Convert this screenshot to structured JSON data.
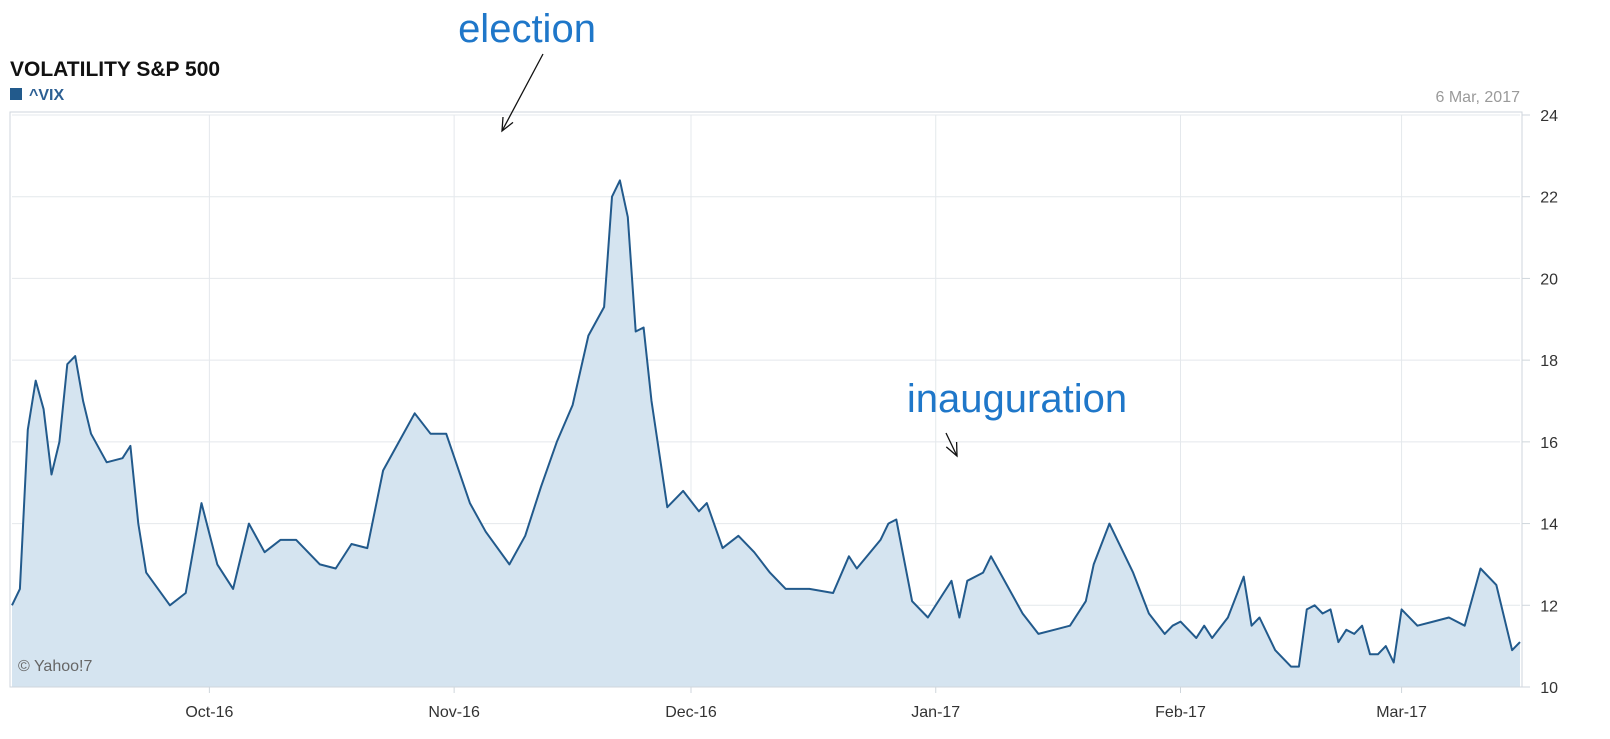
{
  "chart_data": {
    "type": "area",
    "title": "VOLATILITY S&P 500",
    "legend": [
      {
        "name": "^VIX",
        "color": "#225a8c"
      }
    ],
    "date_label": "6 Mar, 2017",
    "credit": "© Yahoo!7",
    "x_ticks": [
      "Oct-16",
      "Nov-16",
      "Dec-16",
      "Jan-17",
      "Feb-17",
      "Mar-17"
    ],
    "y_ticks": [
      "10",
      "12",
      "14",
      "16",
      "18",
      "20",
      "22",
      "24"
    ],
    "ylim": [
      10,
      24
    ],
    "grid": true,
    "annotations": [
      "election",
      "inauguration"
    ],
    "colors": {
      "line": "#225a8c",
      "fill": "#d5e4f0",
      "grid": "#e4e8ec",
      "annotation": "#1f77c9"
    },
    "series": [
      {
        "name": "^VIX",
        "points": [
          [
            "2016-09-06",
            12.0
          ],
          [
            "2016-09-07",
            12.4
          ],
          [
            "2016-09-08",
            16.3
          ],
          [
            "2016-09-09",
            17.5
          ],
          [
            "2016-09-10",
            16.8
          ],
          [
            "2016-09-11",
            15.2
          ],
          [
            "2016-09-12",
            16.0
          ],
          [
            "2016-09-13",
            17.9
          ],
          [
            "2016-09-14",
            18.1
          ],
          [
            "2016-09-15",
            17.0
          ],
          [
            "2016-09-16",
            16.2
          ],
          [
            "2016-09-18",
            15.5
          ],
          [
            "2016-09-20",
            15.6
          ],
          [
            "2016-09-21",
            15.9
          ],
          [
            "2016-09-22",
            14.0
          ],
          [
            "2016-09-23",
            12.8
          ],
          [
            "2016-09-26",
            12.0
          ],
          [
            "2016-09-28",
            12.3
          ],
          [
            "2016-09-30",
            14.5
          ],
          [
            "2016-10-02",
            13.0
          ],
          [
            "2016-10-04",
            12.4
          ],
          [
            "2016-10-06",
            14.0
          ],
          [
            "2016-10-08",
            13.3
          ],
          [
            "2016-10-10",
            13.6
          ],
          [
            "2016-10-12",
            13.6
          ],
          [
            "2016-10-15",
            13.0
          ],
          [
            "2016-10-17",
            12.9
          ],
          [
            "2016-10-19",
            13.5
          ],
          [
            "2016-10-21",
            13.4
          ],
          [
            "2016-10-23",
            15.3
          ],
          [
            "2016-10-25",
            16.0
          ],
          [
            "2016-10-27",
            16.7
          ],
          [
            "2016-10-29",
            16.2
          ],
          [
            "2016-10-31",
            16.2
          ],
          [
            "2016-11-03",
            14.5
          ],
          [
            "2016-11-05",
            13.8
          ],
          [
            "2016-11-08",
            13.0
          ],
          [
            "2016-11-10",
            13.7
          ],
          [
            "2016-11-12",
            14.9
          ],
          [
            "2016-11-14",
            16.0
          ],
          [
            "2016-11-16",
            16.9
          ],
          [
            "2016-11-18",
            18.6
          ],
          [
            "2016-11-20",
            19.3
          ],
          [
            "2016-11-21",
            22.0
          ],
          [
            "2016-11-22",
            22.4
          ],
          [
            "2016-11-23",
            21.5
          ],
          [
            "2016-11-24",
            18.7
          ],
          [
            "2016-11-25",
            18.8
          ],
          [
            "2016-11-26",
            17.0
          ],
          [
            "2016-11-28",
            14.4
          ],
          [
            "2016-11-30",
            14.8
          ],
          [
            "2016-12-02",
            14.3
          ],
          [
            "2016-12-03",
            14.5
          ],
          [
            "2016-12-05",
            13.4
          ],
          [
            "2016-12-07",
            13.7
          ],
          [
            "2016-12-09",
            13.3
          ],
          [
            "2016-12-11",
            12.8
          ],
          [
            "2016-12-13",
            12.4
          ],
          [
            "2016-12-16",
            12.4
          ],
          [
            "2016-12-19",
            12.3
          ],
          [
            "2016-12-21",
            13.2
          ],
          [
            "2016-12-22",
            12.9
          ],
          [
            "2016-12-25",
            13.6
          ],
          [
            "2016-12-26",
            14.0
          ],
          [
            "2016-12-27",
            14.1
          ],
          [
            "2016-12-29",
            12.1
          ],
          [
            "2016-12-31",
            11.7
          ],
          [
            "2017-01-02",
            12.3
          ],
          [
            "2017-01-03",
            12.6
          ],
          [
            "2017-01-04",
            11.7
          ],
          [
            "2017-01-05",
            12.6
          ],
          [
            "2017-01-07",
            12.8
          ],
          [
            "2017-01-08",
            13.2
          ],
          [
            "2017-01-10",
            12.5
          ],
          [
            "2017-01-12",
            11.8
          ],
          [
            "2017-01-14",
            11.3
          ],
          [
            "2017-01-16",
            11.4
          ],
          [
            "2017-01-18",
            11.5
          ],
          [
            "2017-01-20",
            12.1
          ],
          [
            "2017-01-21",
            13.0
          ],
          [
            "2017-01-23",
            14.0
          ],
          [
            "2017-01-26",
            12.8
          ],
          [
            "2017-01-28",
            11.8
          ],
          [
            "2017-01-30",
            11.3
          ],
          [
            "2017-01-31",
            11.5
          ],
          [
            "2017-02-01",
            11.6
          ],
          [
            "2017-02-03",
            11.2
          ],
          [
            "2017-02-04",
            11.5
          ],
          [
            "2017-02-05",
            11.2
          ],
          [
            "2017-02-07",
            11.7
          ],
          [
            "2017-02-09",
            12.7
          ],
          [
            "2017-02-10",
            11.5
          ],
          [
            "2017-02-11",
            11.7
          ],
          [
            "2017-02-13",
            10.9
          ],
          [
            "2017-02-15",
            10.5
          ],
          [
            "2017-02-16",
            10.5
          ],
          [
            "2017-02-17",
            11.9
          ],
          [
            "2017-02-18",
            12.0
          ],
          [
            "2017-02-19",
            11.8
          ],
          [
            "2017-02-20",
            11.9
          ],
          [
            "2017-02-21",
            11.1
          ],
          [
            "2017-02-22",
            11.4
          ],
          [
            "2017-02-23",
            11.3
          ],
          [
            "2017-02-24",
            11.5
          ],
          [
            "2017-02-25",
            10.8
          ],
          [
            "2017-02-26",
            10.8
          ],
          [
            "2017-02-27",
            11.0
          ],
          [
            "2017-02-28",
            10.6
          ],
          [
            "2017-03-01",
            11.9
          ],
          [
            "2017-03-03",
            11.5
          ],
          [
            "2017-03-05",
            11.6
          ],
          [
            "2017-03-07",
            11.7
          ],
          [
            "2017-03-09",
            11.5
          ],
          [
            "2017-03-11",
            12.9
          ],
          [
            "2017-03-13",
            12.5
          ],
          [
            "2017-03-15",
            10.9
          ],
          [
            "2017-03-16",
            11.1
          ]
        ]
      }
    ]
  }
}
